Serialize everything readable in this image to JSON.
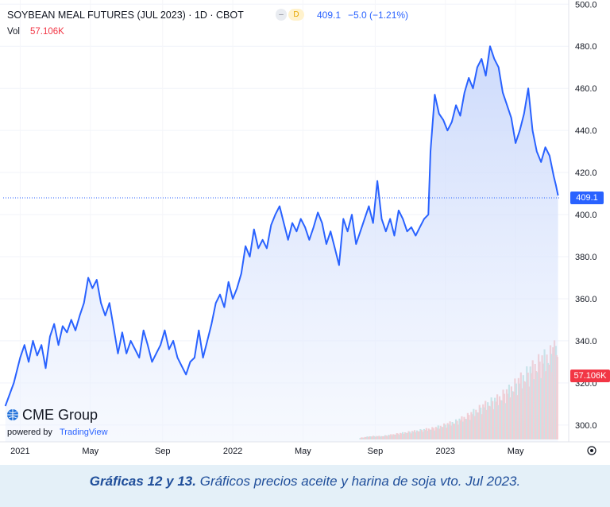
{
  "header": {
    "title": "SOYBEAN MEAL FUTURES (JUL 2023) · 1D · CBOT",
    "interval_badge": "D",
    "last_price": "409.1",
    "change": "−5.0 (−1.21%)",
    "vol_label": "Vol",
    "vol_value": "57.106K"
  },
  "branding": {
    "logo": "CME Group",
    "powered_by": "powered by",
    "powered_by_brand": "TradingView"
  },
  "caption": {
    "bold": "Gráficas 12 y 13.",
    "text": " Gráficos precios aceite y harina de soja vto. Jul 2023."
  },
  "colors": {
    "line": "#2962ff",
    "area_top": "#c7d6fb",
    "volume_up": "#9fd6cf",
    "volume_down": "#f5a9a9",
    "volume_label_bg": "#f23645"
  },
  "chart_data": {
    "type": "line",
    "title": "SOYBEAN MEAL FUTURES (JUL 2023) · 1D · CBOT",
    "x_tick_labels": [
      "2021",
      "May",
      "Sep",
      "2022",
      "May",
      "Sep",
      "2023",
      "May"
    ],
    "y_axis": {
      "ylim": [
        292,
        502
      ],
      "ticks": [
        300,
        320,
        340,
        360,
        380,
        400,
        420,
        440,
        460,
        480,
        500
      ],
      "tick_labels": [
        "300.0",
        "320.0",
        "340.0",
        "360.0",
        "380.0",
        "400.0",
        "420.0",
        "440.0",
        "460.0",
        "480.0",
        "500.0"
      ],
      "side": "right"
    },
    "last_value_label": "409.1",
    "last_value": 409.1,
    "volume_last_label": "57.106K",
    "series": [
      {
        "values": [
          [
            2020.93,
            309
          ],
          [
            2020.97,
            320
          ],
          [
            2021.0,
            332
          ],
          [
            2021.02,
            338
          ],
          [
            2021.04,
            330
          ],
          [
            2021.06,
            340
          ],
          [
            2021.08,
            333
          ],
          [
            2021.1,
            338
          ],
          [
            2021.12,
            327
          ],
          [
            2021.14,
            342
          ],
          [
            2021.16,
            348
          ],
          [
            2021.18,
            338
          ],
          [
            2021.2,
            347
          ],
          [
            2021.22,
            344
          ],
          [
            2021.24,
            350
          ],
          [
            2021.26,
            345
          ],
          [
            2021.28,
            352
          ],
          [
            2021.3,
            358
          ],
          [
            2021.32,
            370
          ],
          [
            2021.34,
            365
          ],
          [
            2021.36,
            369
          ],
          [
            2021.38,
            358
          ],
          [
            2021.4,
            352
          ],
          [
            2021.42,
            358
          ],
          [
            2021.44,
            346
          ],
          [
            2021.46,
            334
          ],
          [
            2021.48,
            344
          ],
          [
            2021.5,
            334
          ],
          [
            2021.52,
            340
          ],
          [
            2021.54,
            336
          ],
          [
            2021.56,
            332
          ],
          [
            2021.58,
            345
          ],
          [
            2021.6,
            338
          ],
          [
            2021.62,
            330
          ],
          [
            2021.64,
            334
          ],
          [
            2021.66,
            338
          ],
          [
            2021.68,
            345
          ],
          [
            2021.7,
            336
          ],
          [
            2021.72,
            340
          ],
          [
            2021.74,
            332
          ],
          [
            2021.76,
            328
          ],
          [
            2021.78,
            324
          ],
          [
            2021.8,
            330
          ],
          [
            2021.82,
            332
          ],
          [
            2021.84,
            345
          ],
          [
            2021.86,
            332
          ],
          [
            2021.88,
            340
          ],
          [
            2021.9,
            348
          ],
          [
            2021.92,
            358
          ],
          [
            2021.94,
            362
          ],
          [
            2021.96,
            356
          ],
          [
            2021.98,
            368
          ],
          [
            2022.0,
            360
          ],
          [
            2022.02,
            365
          ],
          [
            2022.04,
            372
          ],
          [
            2022.06,
            385
          ],
          [
            2022.08,
            380
          ],
          [
            2022.1,
            393
          ],
          [
            2022.12,
            384
          ],
          [
            2022.14,
            388
          ],
          [
            2022.16,
            384
          ],
          [
            2022.18,
            395
          ],
          [
            2022.2,
            400
          ],
          [
            2022.22,
            404
          ],
          [
            2022.24,
            396
          ],
          [
            2022.26,
            388
          ],
          [
            2022.28,
            396
          ],
          [
            2022.3,
            392
          ],
          [
            2022.32,
            398
          ],
          [
            2022.34,
            394
          ],
          [
            2022.36,
            388
          ],
          [
            2022.38,
            394
          ],
          [
            2022.4,
            401
          ],
          [
            2022.42,
            396
          ],
          [
            2022.44,
            386
          ],
          [
            2022.46,
            392
          ],
          [
            2022.48,
            384
          ],
          [
            2022.5,
            376
          ],
          [
            2022.52,
            398
          ],
          [
            2022.54,
            392
          ],
          [
            2022.56,
            400
          ],
          [
            2022.58,
            386
          ],
          [
            2022.6,
            392
          ],
          [
            2022.62,
            398
          ],
          [
            2022.64,
            404
          ],
          [
            2022.66,
            396
          ],
          [
            2022.68,
            416
          ],
          [
            2022.7,
            398
          ],
          [
            2022.72,
            392
          ],
          [
            2022.74,
            398
          ],
          [
            2022.76,
            390
          ],
          [
            2022.78,
            402
          ],
          [
            2022.8,
            398
          ],
          [
            2022.82,
            392
          ],
          [
            2022.84,
            394
          ],
          [
            2022.86,
            390
          ],
          [
            2022.88,
            394
          ],
          [
            2022.9,
            398
          ],
          [
            2022.92,
            400
          ],
          [
            2022.93,
            430
          ],
          [
            2022.95,
            457
          ],
          [
            2022.97,
            448
          ],
          [
            2022.99,
            445
          ],
          [
            2023.01,
            440
          ],
          [
            2023.03,
            444
          ],
          [
            2023.05,
            452
          ],
          [
            2023.07,
            447
          ],
          [
            2023.09,
            458
          ],
          [
            2023.11,
            465
          ],
          [
            2023.13,
            460
          ],
          [
            2023.15,
            470
          ],
          [
            2023.17,
            474
          ],
          [
            2023.19,
            466
          ],
          [
            2023.21,
            480
          ],
          [
            2023.23,
            474
          ],
          [
            2023.25,
            470
          ],
          [
            2023.27,
            458
          ],
          [
            2023.29,
            452
          ],
          [
            2023.31,
            446
          ],
          [
            2023.33,
            434
          ],
          [
            2023.35,
            440
          ],
          [
            2023.37,
            448
          ],
          [
            2023.39,
            460
          ],
          [
            2023.41,
            440
          ],
          [
            2023.43,
            430
          ],
          [
            2023.45,
            425
          ],
          [
            2023.47,
            432
          ],
          [
            2023.49,
            428
          ],
          [
            2023.51,
            418
          ],
          [
            2023.52,
            414
          ],
          [
            2023.53,
            409.1
          ]
        ]
      }
    ],
    "volume_series": [
      [
        2022.6,
        1
      ],
      [
        2022.65,
        2
      ],
      [
        2022.7,
        2
      ],
      [
        2022.75,
        3
      ],
      [
        2022.8,
        4
      ],
      [
        2022.85,
        5
      ],
      [
        2022.9,
        6
      ],
      [
        2022.95,
        7
      ],
      [
        2023.0,
        9
      ],
      [
        2023.05,
        11
      ],
      [
        2023.1,
        14
      ],
      [
        2023.15,
        18
      ],
      [
        2023.2,
        22
      ],
      [
        2023.25,
        25
      ],
      [
        2023.3,
        30
      ],
      [
        2023.35,
        36
      ],
      [
        2023.4,
        42
      ],
      [
        2023.45,
        48
      ],
      [
        2023.5,
        52
      ],
      [
        2023.53,
        57
      ]
    ]
  }
}
